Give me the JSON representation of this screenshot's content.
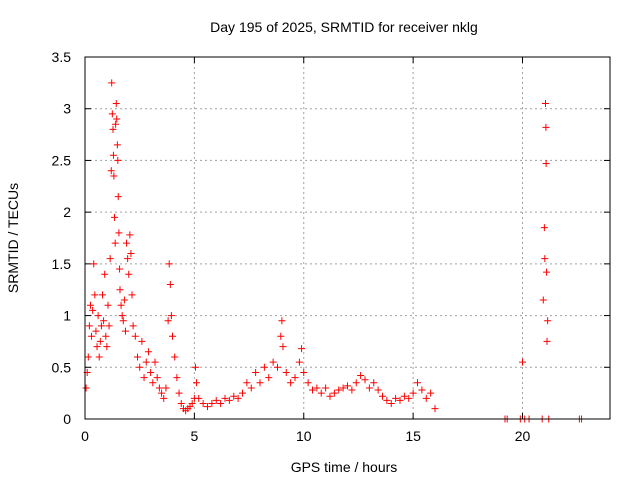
{
  "chart_data": {
    "type": "scatter",
    "title": "Day 195 of 2025, SRMTID for receiver nklg",
    "xlabel": "GPS time / hours",
    "ylabel": "SRMTID / TECUs",
    "xlim": [
      0,
      24
    ],
    "ylim": [
      0,
      3.5
    ],
    "x_ticks": [
      0,
      5,
      10,
      15,
      20
    ],
    "x_tick_labels": [
      "0",
      "5",
      "10",
      "15",
      "20"
    ],
    "y_ticks": [
      0,
      0.5,
      1,
      1.5,
      2,
      2.5,
      3,
      3.5
    ],
    "y_tick_labels": [
      "0",
      "0.5",
      "1",
      "1.5",
      "2",
      "2.5",
      "3",
      "3.5"
    ],
    "grid": true,
    "marker": "+",
    "point_color": "#ff0000",
    "series": [
      {
        "name": "SRMTID",
        "points": [
          [
            0.05,
            0.3
          ],
          [
            0.1,
            0.45
          ],
          [
            0.15,
            0.6
          ],
          [
            0.2,
            0.9
          ],
          [
            0.25,
            1.1
          ],
          [
            0.3,
            0.8
          ],
          [
            0.35,
            1.05
          ],
          [
            0.4,
            1.5
          ],
          [
            0.45,
            1.2
          ],
          [
            0.5,
            0.85
          ],
          [
            0.55,
            0.7
          ],
          [
            0.6,
            1.0
          ],
          [
            0.65,
            0.6
          ],
          [
            0.7,
            0.75
          ],
          [
            0.75,
            0.9
          ],
          [
            0.8,
            1.2
          ],
          [
            0.85,
            0.95
          ],
          [
            0.9,
            1.4
          ],
          [
            0.95,
            0.8
          ],
          [
            1.0,
            0.7
          ],
          [
            1.05,
            1.1
          ],
          [
            1.1,
            0.9
          ],
          [
            1.15,
            1.55
          ],
          [
            1.2,
            2.4
          ],
          [
            1.22,
            3.25
          ],
          [
            1.25,
            2.95
          ],
          [
            1.28,
            2.8
          ],
          [
            1.3,
            2.55
          ],
          [
            1.32,
            2.35
          ],
          [
            1.35,
            1.95
          ],
          [
            1.38,
            1.7
          ],
          [
            1.4,
            2.85
          ],
          [
            1.43,
            3.05
          ],
          [
            1.45,
            2.9
          ],
          [
            1.48,
            2.65
          ],
          [
            1.5,
            2.5
          ],
          [
            1.52,
            2.15
          ],
          [
            1.55,
            1.8
          ],
          [
            1.58,
            1.45
          ],
          [
            1.6,
            1.25
          ],
          [
            1.65,
            1.1
          ],
          [
            1.7,
            1.0
          ],
          [
            1.75,
            0.95
          ],
          [
            1.8,
            1.15
          ],
          [
            1.85,
            0.85
          ],
          [
            1.9,
            1.7
          ],
          [
            1.95,
            1.55
          ],
          [
            2.0,
            1.4
          ],
          [
            2.05,
            1.78
          ],
          [
            2.1,
            1.6
          ],
          [
            2.15,
            1.2
          ],
          [
            2.2,
            0.9
          ],
          [
            2.3,
            0.8
          ],
          [
            2.4,
            0.6
          ],
          [
            2.5,
            0.5
          ],
          [
            2.6,
            0.75
          ],
          [
            2.7,
            0.4
          ],
          [
            2.8,
            0.55
          ],
          [
            2.9,
            0.65
          ],
          [
            3.0,
            0.45
          ],
          [
            3.1,
            0.35
          ],
          [
            3.2,
            0.55
          ],
          [
            3.3,
            0.4
          ],
          [
            3.4,
            0.3
          ],
          [
            3.5,
            0.25
          ],
          [
            3.6,
            0.2
          ],
          [
            3.7,
            0.3
          ],
          [
            3.8,
            0.95
          ],
          [
            3.85,
            1.5
          ],
          [
            3.9,
            1.3
          ],
          [
            3.95,
            1.0
          ],
          [
            4.0,
            0.8
          ],
          [
            4.1,
            0.6
          ],
          [
            4.2,
            0.4
          ],
          [
            4.3,
            0.25
          ],
          [
            4.4,
            0.15
          ],
          [
            4.5,
            0.1
          ],
          [
            4.6,
            0.08
          ],
          [
            4.7,
            0.1
          ],
          [
            4.8,
            0.12
          ],
          [
            4.9,
            0.15
          ],
          [
            5.0,
            0.2
          ],
          [
            5.05,
            0.5
          ],
          [
            5.1,
            0.35
          ],
          [
            5.2,
            0.2
          ],
          [
            5.4,
            0.15
          ],
          [
            5.6,
            0.12
          ],
          [
            5.8,
            0.15
          ],
          [
            6.0,
            0.18
          ],
          [
            6.2,
            0.15
          ],
          [
            6.4,
            0.2
          ],
          [
            6.6,
            0.18
          ],
          [
            6.8,
            0.22
          ],
          [
            7.0,
            0.2
          ],
          [
            7.2,
            0.25
          ],
          [
            7.4,
            0.35
          ],
          [
            7.6,
            0.3
          ],
          [
            7.8,
            0.45
          ],
          [
            8.0,
            0.35
          ],
          [
            8.2,
            0.5
          ],
          [
            8.4,
            0.4
          ],
          [
            8.6,
            0.55
          ],
          [
            8.8,
            0.5
          ],
          [
            8.95,
            0.8
          ],
          [
            9.0,
            0.95
          ],
          [
            9.05,
            0.7
          ],
          [
            9.2,
            0.45
          ],
          [
            9.4,
            0.35
          ],
          [
            9.6,
            0.4
          ],
          [
            9.8,
            0.55
          ],
          [
            9.9,
            0.68
          ],
          [
            10.0,
            0.45
          ],
          [
            10.2,
            0.35
          ],
          [
            10.4,
            0.28
          ],
          [
            10.6,
            0.3
          ],
          [
            10.8,
            0.25
          ],
          [
            11.0,
            0.3
          ],
          [
            11.2,
            0.22
          ],
          [
            11.4,
            0.25
          ],
          [
            11.6,
            0.28
          ],
          [
            11.8,
            0.3
          ],
          [
            12.0,
            0.32
          ],
          [
            12.2,
            0.28
          ],
          [
            12.4,
            0.35
          ],
          [
            12.6,
            0.42
          ],
          [
            12.8,
            0.38
          ],
          [
            13.0,
            0.3
          ],
          [
            13.2,
            0.35
          ],
          [
            13.4,
            0.28
          ],
          [
            13.6,
            0.22
          ],
          [
            13.8,
            0.18
          ],
          [
            14.0,
            0.15
          ],
          [
            14.2,
            0.2
          ],
          [
            14.4,
            0.18
          ],
          [
            14.6,
            0.22
          ],
          [
            14.8,
            0.2
          ],
          [
            15.0,
            0.25
          ],
          [
            15.2,
            0.35
          ],
          [
            15.4,
            0.28
          ],
          [
            15.6,
            0.2
          ],
          [
            15.8,
            0.25
          ],
          [
            16.0,
            0.1
          ],
          [
            19.2,
            0.0
          ],
          [
            19.3,
            0.0
          ],
          [
            19.9,
            0.0
          ],
          [
            20.0,
            0.55
          ],
          [
            20.1,
            0.0
          ],
          [
            20.3,
            0.0
          ],
          [
            20.9,
            0.0
          ],
          [
            20.95,
            1.15
          ],
          [
            21.0,
            1.85
          ],
          [
            21.02,
            1.55
          ],
          [
            21.05,
            3.05
          ],
          [
            21.07,
            2.82
          ],
          [
            21.08,
            2.47
          ],
          [
            21.1,
            1.42
          ],
          [
            21.12,
            0.75
          ],
          [
            21.15,
            0.95
          ],
          [
            21.2,
            0.0
          ],
          [
            22.6,
            0.0
          ],
          [
            22.7,
            0.0
          ]
        ]
      }
    ]
  }
}
